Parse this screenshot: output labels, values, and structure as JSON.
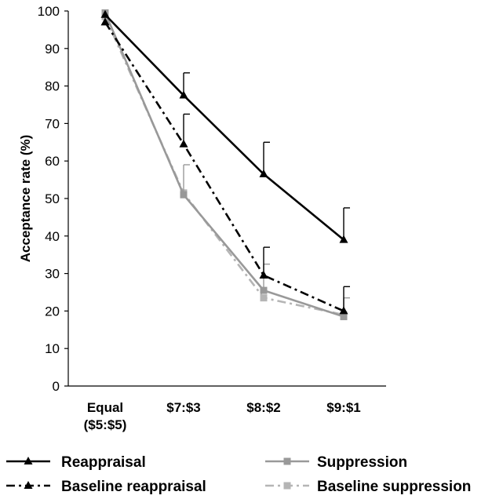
{
  "chart_data": {
    "type": "line",
    "title": "",
    "xlabel": "",
    "ylabel": "Acceptance rate (%)",
    "ylim": [
      0,
      100
    ],
    "yticks": [
      0,
      10,
      20,
      30,
      40,
      50,
      60,
      70,
      80,
      90,
      100
    ],
    "categories": [
      [
        "Equal",
        "($5:$5)"
      ],
      [
        "$7:$3"
      ],
      [
        "$8:$2"
      ],
      [
        "$9:$1"
      ]
    ],
    "grid": false,
    "legend_position": "bottom",
    "series": [
      {
        "name": "Reappraisal",
        "values": [
          99,
          77.5,
          56.5,
          39
        ],
        "error": [
          0,
          6,
          8.5,
          8.5
        ],
        "color": "#000000",
        "dash": "solid",
        "marker": "triangle"
      },
      {
        "name": "Baseline reappraisal",
        "values": [
          97,
          64.5,
          29.5,
          20
        ],
        "error": [
          0,
          8,
          7.5,
          6.5
        ],
        "color": "#000000",
        "dash": "dashdot",
        "marker": "triangle"
      },
      {
        "name": "Suppression",
        "values": [
          99.5,
          51,
          25.5,
          18.5
        ],
        "error": [
          0,
          8,
          7,
          5
        ],
        "color": "#999999",
        "dash": "solid",
        "marker": "square"
      },
      {
        "name": "Baseline suppression",
        "values": [
          98.5,
          51.5,
          23.5,
          19
        ],
        "error": [
          0,
          0,
          0,
          0
        ],
        "color": "#b5b5b5",
        "dash": "dashdot",
        "marker": "square"
      }
    ]
  }
}
